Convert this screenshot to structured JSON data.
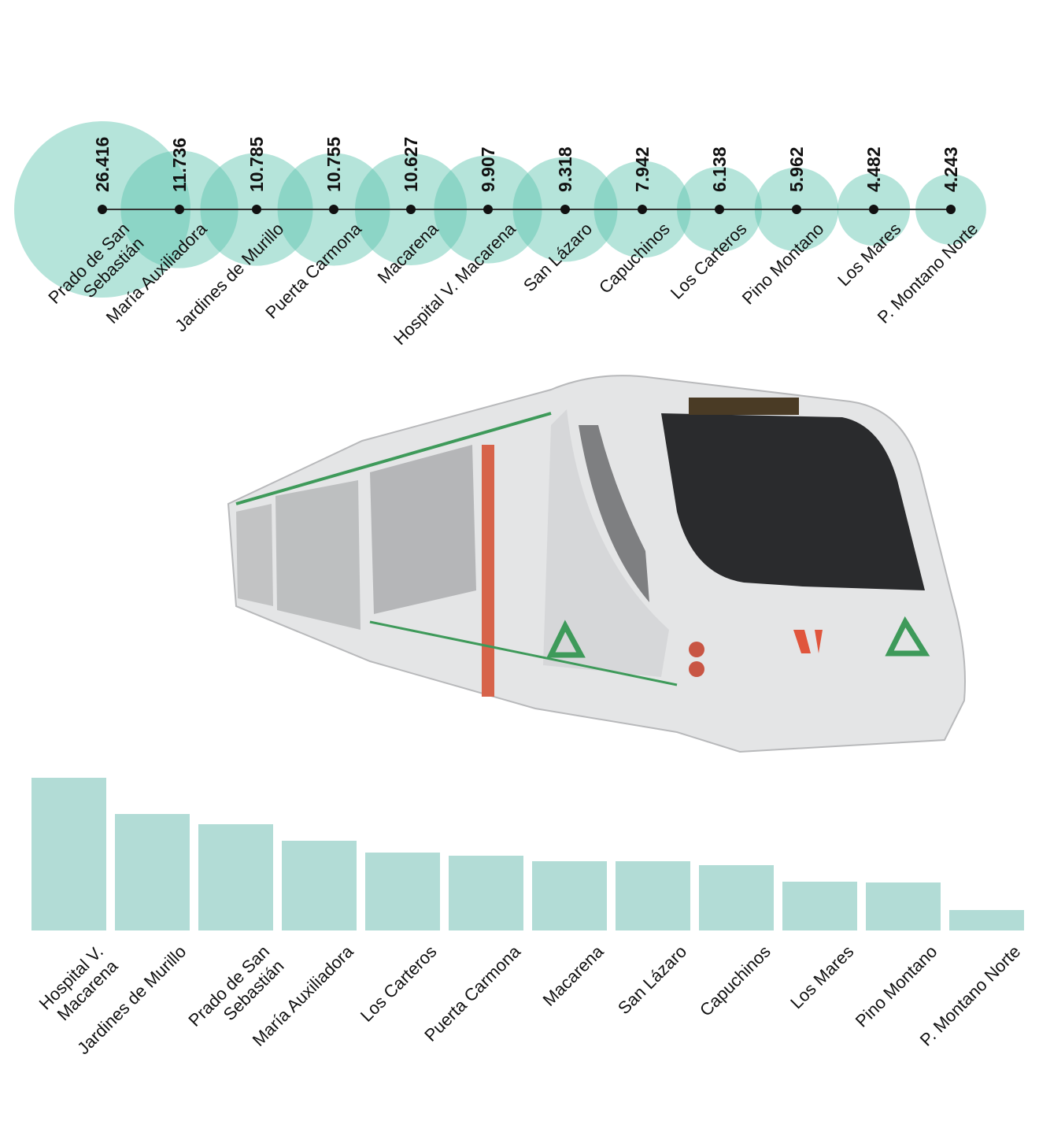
{
  "chart_data": [
    {
      "type": "bubble",
      "categories": [
        "Prado de San\nSebastián",
        "María Auxiliadora",
        "Jardines de Murillo",
        "Puerta Carmona",
        "Macarena",
        "Hospital V. Macarena",
        "San Lázaro",
        "Capuchinos",
        "Los Carteros",
        "Pino Montano",
        "Los Mares",
        "P. Montano Norte"
      ],
      "values": [
        26.416,
        11.736,
        10.785,
        10.755,
        10.627,
        9.907,
        9.318,
        7.942,
        6.138,
        5.962,
        4.482,
        4.243
      ],
      "color": "#5cc4ae"
    },
    {
      "type": "bar",
      "categories": [
        "Hospital V.\nMacarena",
        "Jardines de Murillo",
        "Prado de San\nSebastián",
        "María Auxiliadora",
        "Los Carteros",
        "Puerta Carmona",
        "Macarena",
        "San Lázaro",
        "Capuchinos",
        "Los Mares",
        "Pino Montano",
        "P. Montano Norte"
      ],
      "values": [
        194,
        148,
        135,
        114,
        99,
        95,
        88,
        88,
        83,
        62,
        61,
        26
      ],
      "ylim": [
        0,
        200
      ],
      "color": "#b2dcd6"
    }
  ]
}
